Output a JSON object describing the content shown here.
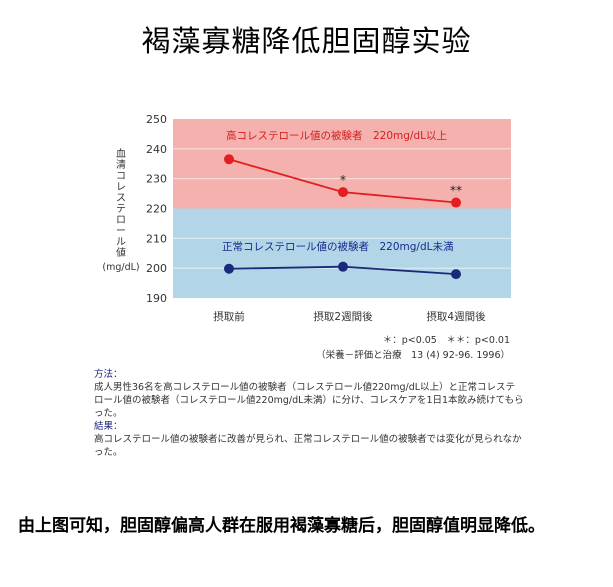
{
  "title": "褐藻寡糖降低胆固醇实验",
  "chart_data": {
    "type": "line",
    "ylabel": "血清コレステロール値(mg/dL)",
    "ylim": [
      190,
      250
    ],
    "yticks": [
      190,
      200,
      210,
      220,
      230,
      240,
      250
    ],
    "categories": [
      "摂取前",
      "摂取2週間後",
      "摂取4週間後"
    ],
    "bands": [
      {
        "range": [
          220,
          250
        ],
        "color": "#f5b1ad",
        "label": "高コレステロール値の被験者　220mg/dL以上"
      },
      {
        "range": [
          190,
          220
        ],
        "color": "#b2d6e8",
        "label": "正常コレステロール値の被験者　220mg/dL未満"
      }
    ],
    "series": [
      {
        "values": [
          236.5,
          225.5,
          222
        ],
        "color": "#e02020",
        "annotations": [
          "",
          "*",
          "**"
        ]
      },
      {
        "values": [
          199.8,
          200.5,
          198
        ],
        "color": "#1a2a7a",
        "annotations": [
          "",
          "",
          ""
        ]
      }
    ],
    "grid": true
  },
  "footnote": {
    "sig": "＊：p<0.05　＊＊：p<0.01",
    "source": "（栄養－評価と治療　13 (4) 92-96. 1996）"
  },
  "method": {
    "heading": "方法：",
    "body": "成人男性36名を高コレステロール値の被験者（コレステロール値220mg/dL以上）と正常コレステロール値の被験者（コレステロール値220mg/dL未満）に分け、コレスケアを1日1本飲み続けてもらった。"
  },
  "result": {
    "heading": "結果：",
    "body": "高コレステロール値の被験者に改善が見られ、正常コレステロール値の被験者では変化が見られなかった。"
  },
  "conclusion": "由上图可知，胆固醇偏高人群在服用褐藻寡糖后，胆固醇值明显降低。"
}
